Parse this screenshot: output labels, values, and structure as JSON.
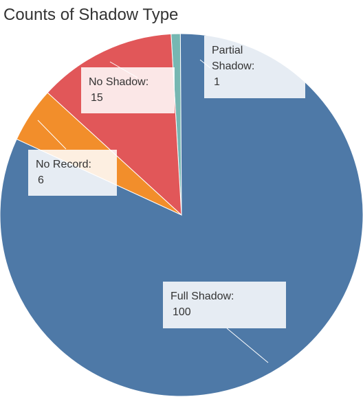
{
  "chart_data": {
    "type": "pie",
    "title": "Counts of Shadow Type",
    "slices": [
      {
        "label": "Full Shadow",
        "value": 100,
        "color": "#4e79a7"
      },
      {
        "label": "No Record",
        "value": 6,
        "color": "#f28e2b"
      },
      {
        "label": "No Shadow",
        "value": 15,
        "color": "#e15759"
      },
      {
        "label": "Partial Shadow",
        "value": 1,
        "color": "#76b7b2"
      }
    ]
  }
}
